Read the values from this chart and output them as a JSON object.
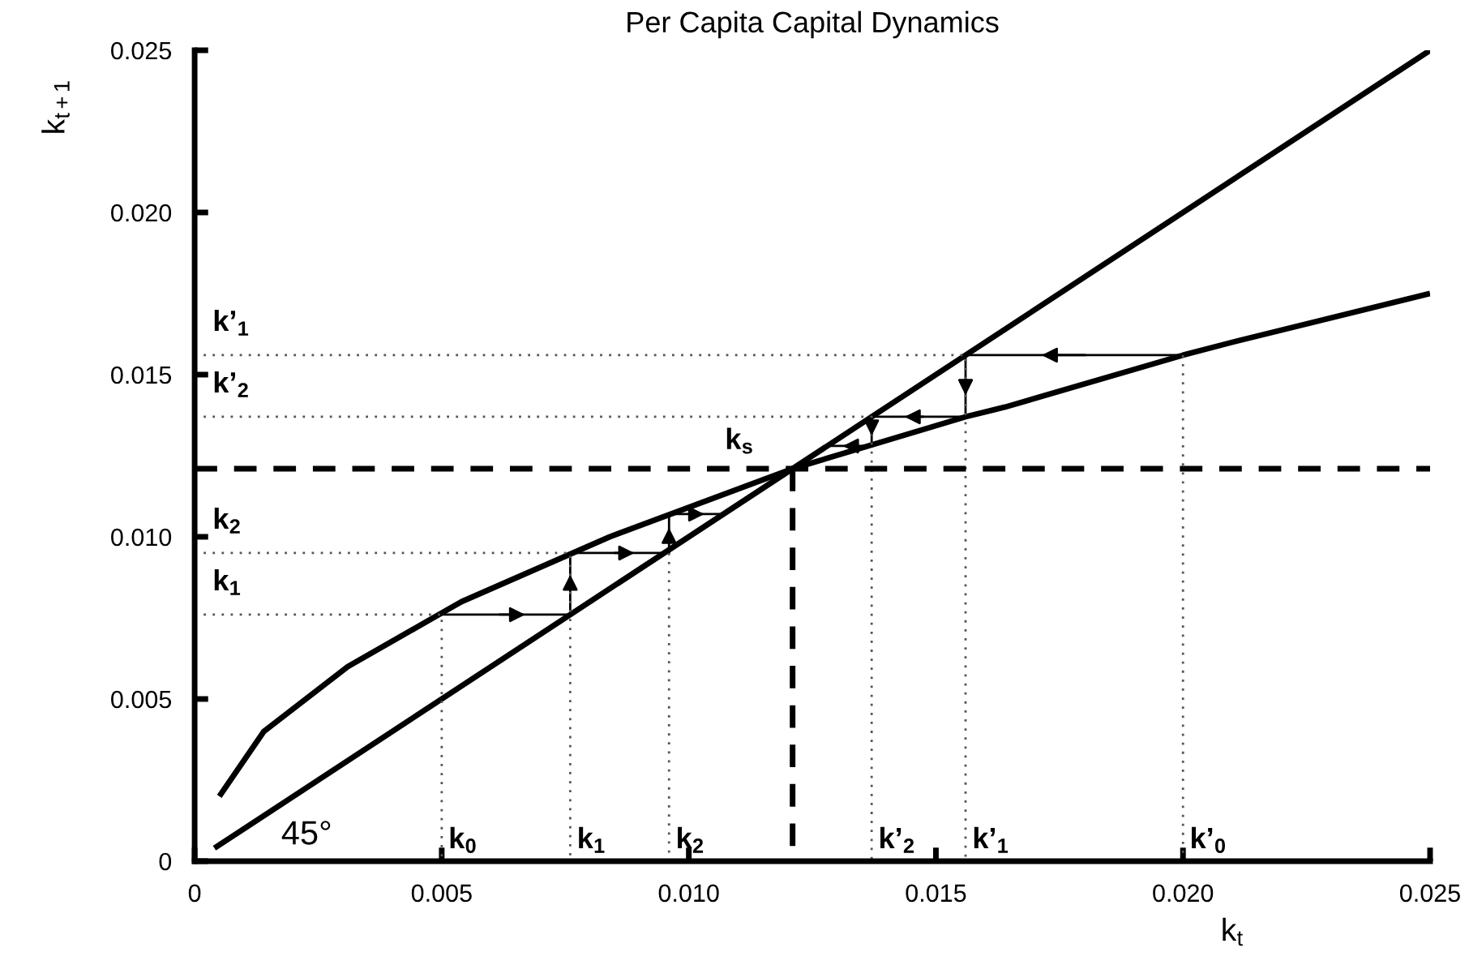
{
  "chart_data": {
    "type": "line",
    "title": "Per Capita Capital Dynamics",
    "xlabel": "k$_{t}$",
    "ylabel": "k$_{t+1}$",
    "xlim": [
      0,
      0.025
    ],
    "ylim": [
      0,
      0.025
    ],
    "xticks": [
      {
        "value": 0,
        "label": "0"
      },
      {
        "value": 0.005,
        "label": "0.005"
      },
      {
        "value": 0.01,
        "label": "0.010"
      },
      {
        "value": 0.015,
        "label": "0.015"
      },
      {
        "value": 0.02,
        "label": "0.020"
      },
      {
        "value": 0.025,
        "label": "0.025"
      }
    ],
    "yticks": [
      {
        "value": 0,
        "label": "0"
      },
      {
        "value": 0.005,
        "label": "0.005"
      },
      {
        "value": 0.01,
        "label": "0.010"
      },
      {
        "value": 0.015,
        "label": "0.015"
      },
      {
        "value": 0.02,
        "label": "0.020"
      },
      {
        "value": 0.025,
        "label": "0.025"
      }
    ],
    "grid": false,
    "legend": false,
    "marker": "none",
    "series": [
      {
        "color": "#000000",
        "line_style": "solid",
        "x": [
          0.0004,
          0.025
        ],
        "values": [
          0.0004,
          0.025
        ]
      },
      {
        "color": "#000000",
        "line_style": "solid",
        "x": [
          0.0005,
          0.0014,
          0.0031,
          0.0054,
          0.0084,
          0.0121,
          0.0156,
          0.0164,
          0.02,
          0.021,
          0.025
        ],
        "values": [
          0.002,
          0.004,
          0.006,
          0.008,
          0.01,
          0.0121,
          0.0137,
          0.014,
          0.0156,
          0.016,
          0.0175
        ]
      },
      {
        "color": "#000000",
        "line_style": "solid",
        "x": [
          0.005,
          0.0076,
          0.0076,
          0.0096,
          0.0096,
          0.0107
        ],
        "values": [
          0.0076,
          0.0076,
          0.0095,
          0.0095,
          0.0107,
          0.0107
        ]
      },
      {
        "color": "#000000",
        "line_style": "solid",
        "x": [
          0.02,
          0.0156,
          0.0156,
          0.0137,
          0.0137,
          0.0128
        ],
        "values": [
          0.0156,
          0.0156,
          0.0137,
          0.0137,
          0.0128,
          0.0128
        ]
      },
      {
        "color": "#555555",
        "line_style": "dotted",
        "x": [
          0,
          0.005,
          0.005
        ],
        "values": [
          0.0076,
          0.0076,
          0
        ]
      },
      {
        "color": "#555555",
        "line_style": "dotted",
        "x": [
          0,
          0.0076,
          0.0076
        ],
        "values": [
          0.0095,
          0.0095,
          0
        ]
      },
      {
        "color": "#555555",
        "line_style": "dotted",
        "x": [
          0.0096,
          0.0096
        ],
        "values": [
          0.0095,
          0
        ]
      },
      {
        "color": "#555555",
        "line_style": "dotted",
        "x": [
          0,
          0.0156,
          0.0156
        ],
        "values": [
          0.0156,
          0.0156,
          0
        ]
      },
      {
        "color": "#555555",
        "line_style": "dotted",
        "x": [
          0,
          0.0137,
          0.0137
        ],
        "values": [
          0.0137,
          0.0137,
          0
        ]
      },
      {
        "color": "#555555",
        "line_style": "dotted",
        "x": [
          0.02,
          0.02
        ],
        "values": [
          0.0156,
          0
        ]
      },
      {
        "color": "#000000",
        "line_style": "dashed",
        "x": [
          0.0121,
          0.0121
        ],
        "values": [
          0.0121,
          0
        ]
      }
    ],
    "ref_lines": [
      {
        "axis": "y",
        "value": 0.0121,
        "color": "#000000",
        "line_style": "dashed"
      }
    ],
    "annotations": [
      {
        "text": "k’$_{1}$",
        "x": 0,
        "y": 0.0156
      },
      {
        "text": "k’$_{2}$",
        "x": 0,
        "y": 0.0137
      },
      {
        "text": "k$_{2}$",
        "x": 0,
        "y": 0.0095
      },
      {
        "text": "k$_{1}$",
        "x": 0,
        "y": 0.0076
      },
      {
        "text": "k$_{s}$",
        "x": 0.0121,
        "y": 0.0121
      },
      "45°",
      {
        "text": "k$_{0}$",
        "x": 0.005,
        "y": 0
      },
      {
        "text": "k$_{1}$",
        "x": 0.0076,
        "y": 0
      },
      {
        "text": "k$_{2}$",
        "x": 0.0096,
        "y": 0
      },
      {
        "text": "k’$_{2}$",
        "x": 0.0137,
        "y": 0
      },
      {
        "text": "k’$_{1}$",
        "x": 0.0156,
        "y": 0
      },
      {
        "text": "k’$_{0}$",
        "x": 0.02,
        "y": 0
      }
    ]
  }
}
